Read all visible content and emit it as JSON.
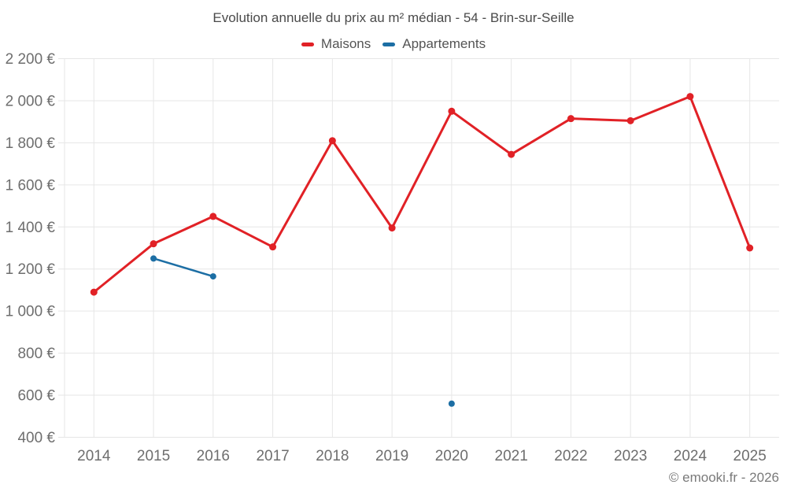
{
  "title": "Evolution annuelle du prix au m² médian - 54 - Brin-sur-Seille",
  "credit": "© emooki.fr - 2026",
  "colors": {
    "background": "#ffffff",
    "grid": "#e6e6e6",
    "axis_text": "#6e6e6e",
    "title_text": "#4a4a4a",
    "legend_text": "#545454",
    "credit_text": "#7a7a7a",
    "maisons": "#e12126",
    "appartements": "#1c6ea4"
  },
  "chart_data": {
    "type": "line",
    "title": "Evolution annuelle du prix au m² médian - 54 - Brin-sur-Seille",
    "xlabel": "",
    "ylabel": "",
    "categories": [
      "2014",
      "2015",
      "2016",
      "2017",
      "2018",
      "2019",
      "2020",
      "2021",
      "2022",
      "2023",
      "2024",
      "2025"
    ],
    "series": [
      {
        "name": "Maisons",
        "color": "#e12126",
        "line_width": 3,
        "marker_radius": 4.5,
        "values": [
          1090,
          1320,
          1450,
          1305,
          1810,
          1395,
          1950,
          1745,
          1915,
          1905,
          2020,
          1300
        ]
      },
      {
        "name": "Appartements",
        "color": "#1c6ea4",
        "line_width": 2.5,
        "marker_radius": 4,
        "values": [
          null,
          1250,
          1165,
          null,
          null,
          null,
          560,
          null,
          null,
          null,
          null,
          null
        ]
      }
    ],
    "ylim": [
      400,
      2200
    ],
    "ytick_step": 200,
    "ytick_labels": [
      "400 €",
      "600 €",
      "800 €",
      "1 000 €",
      "1 200 €",
      "1 400 €",
      "1 600 €",
      "1 800 €",
      "2 000 €",
      "2 200 €"
    ],
    "grid": true,
    "legend_position": "top",
    "currency_suffix": "€"
  }
}
